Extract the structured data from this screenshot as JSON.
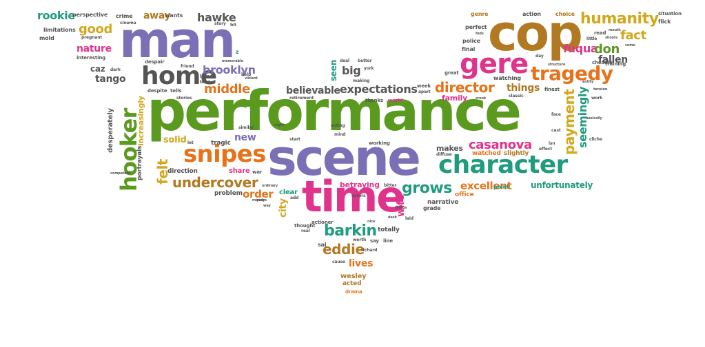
{
  "words": {
    "performance": "performance",
    "scene": "scene",
    "man": "man",
    "cop": "cop",
    "time": "time",
    "character": "character",
    "gere": "gere",
    "snipes": "snipes",
    "home": "home",
    "hooker": "hooker",
    "tragedy": "tragedy",
    "humanity": "humanity",
    "director": "director",
    "casanova": "casanova",
    "undercover": "undercover",
    "barkin": "barkin",
    "eddie": "eddie",
    "grows": "grows",
    "payment": "payment",
    "seemingly": "seemingly",
    "expectations": "expectations",
    "believable": "believable",
    "middle": "middle",
    "brooklyn": "brooklyn",
    "felt": "felt",
    "good": "good",
    "nature": "nature",
    "rookie": "rookie",
    "hawke": "hawke",
    "fact": "fact",
    "fuqua": "fuqua",
    "don": "don",
    "fallen": "fallen",
    "things": "things",
    "excellent": "excellent",
    "unfortunately": "unfortunately",
    "order": "order",
    "lives": "lives",
    "betraying": "betraying",
    "makes": "makes",
    "solid": "solid",
    "new": "new",
    "city": "city",
    "wife": "wife",
    "tango": "tango",
    "caz": "caz",
    "away": "away",
    "big": "big",
    "seen": "seen",
    "family": "family",
    "increasingly": "increasingly",
    "desperately": "desperately",
    "portrayals": "portrayals",
    "share": "share",
    "tragic": "tragic",
    "direction": "direction",
    "wesley": "wesley",
    "acted": "acted",
    "drama": "drama",
    "problem": "problem",
    "clear": "clear",
    "totally": "totally",
    "narrative": "narrative",
    "grade": "grade",
    "office": "office",
    "point": "point",
    "watched": "watched",
    "slightly": "slightly",
    "perfect": "perfect",
    "police": "police",
    "final": "final",
    "genre": "genre",
    "action": "action",
    "choice": "choice",
    "situation": "situation",
    "flick": "flick",
    "limitations": "limitations",
    "mold": "mold",
    "perspective": "perspective",
    "crime": "crime",
    "wants": "wants",
    "pregnant": "pregnant",
    "cinema": "cinema",
    "interesting": "interesting",
    "despair": "despair",
    "friend": "friend",
    "dark": "dark",
    "despite": "despite",
    "tells": "tells",
    "stories": "stories",
    "lumet": "lumet",
    "bent": "bent",
    "thanks": "thanks",
    "world": "world",
    "watching": "watching",
    "classic": "classic",
    "finest": "finest",
    "cheadle": "cheadle",
    "training": "training",
    "week": "week",
    "apart": "apart",
    "great": "great",
    "day": "day",
    "deal": "deal",
    "better": "better",
    "making": "making",
    "york": "york",
    "retirement": "retirement",
    "start": "start",
    "working": "working",
    "acting": "acting",
    "mind": "mind",
    "diffuse": "diffuse",
    "effect": "effect",
    "isn": "isn",
    "face": "face",
    "cast": "cast",
    "work": "work",
    "basically": "basically",
    "cliche": "cliche",
    "let": "let",
    "similar": "similar",
    "war": "war",
    "night": "night",
    "years": "years",
    "ordinary": "ordinary",
    "add": "add",
    "thought": "thought",
    "actioner": "actioner",
    "real": "real",
    "sal": "sal",
    "worth": "worth",
    "say": "say",
    "line": "line",
    "richard": "richard",
    "cause": "cause",
    "actors": "actors",
    "bitter": "bitter",
    "laid": "laid",
    "brings": "brings",
    "desk": "desk",
    "nice": "nice",
    "story": "story",
    "bit": "bit",
    "memorable": "memorable",
    "help": "help",
    "violent": "violent",
    "feds": "feds",
    "little": "little",
    "read": "read",
    "mouth": "mouth",
    "shoots": "shoots",
    "come": "come",
    "structure": "structure",
    "tension": "tension",
    "entity": "entity",
    "competent": "competent",
    "moody": "moody",
    "way": "way",
    "crook": "crook",
    "z": "z"
  }
}
